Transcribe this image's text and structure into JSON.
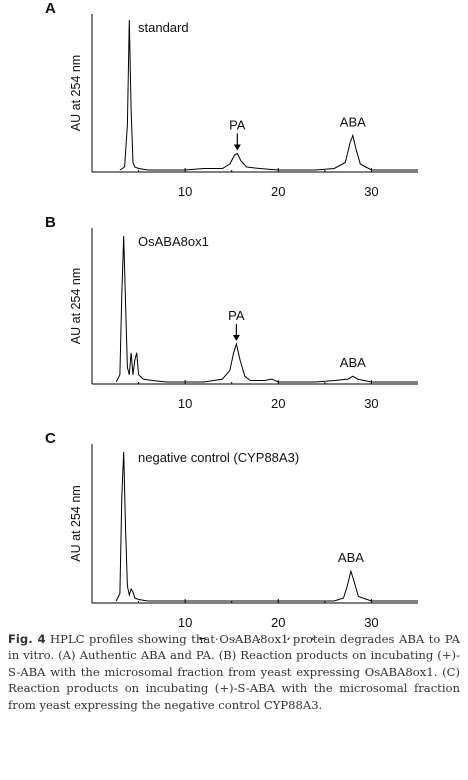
{
  "chart_data": [
    {
      "type": "line",
      "panel_label": "A",
      "annotation": "standard",
      "ylabel": "AU at 254 nm",
      "xlabel": "",
      "xlim": [
        0,
        35
      ],
      "xticks": [
        10,
        20,
        30
      ],
      "grid": false,
      "series": [
        {
          "x": [
            3.0,
            3.5,
            3.8,
            4.0,
            4.2,
            4.4,
            4.6,
            5.0,
            6.0,
            8.0,
            10.0,
            12.0,
            14.0,
            14.8,
            15.3,
            15.6,
            16.0,
            16.6,
            18.0,
            20.0,
            22.0,
            24.0,
            26.0,
            27.2,
            27.7,
            28.0,
            28.3,
            28.8,
            30.0,
            32.0,
            34.0,
            35.0
          ],
          "y": [
            0.0,
            0.02,
            0.3,
            1.0,
            0.4,
            0.05,
            0.02,
            0.01,
            0.0,
            0.0,
            0.0,
            0.01,
            0.01,
            0.04,
            0.1,
            0.11,
            0.06,
            0.02,
            0.01,
            0.0,
            0.0,
            0.0,
            0.01,
            0.05,
            0.18,
            0.23,
            0.15,
            0.04,
            0.0,
            0.0,
            0.0,
            0.0
          ]
        }
      ],
      "peak_labels": [
        {
          "text": "PA",
          "x": 15.6,
          "arrow": true
        },
        {
          "text": "ABA",
          "x": 28.0,
          "arrow": false
        }
      ]
    },
    {
      "type": "line",
      "panel_label": "B",
      "annotation": "OsABA8ox1",
      "ylabel": "AU at 254 nm",
      "xlabel": "",
      "xlim": [
        0,
        35
      ],
      "xticks": [
        10,
        20,
        30
      ],
      "grid": false,
      "series": [
        {
          "x": [
            2.6,
            3.0,
            3.2,
            3.4,
            3.6,
            3.8,
            4.0,
            4.2,
            4.4,
            4.6,
            4.8,
            5.0,
            5.5,
            6.5,
            8.0,
            10.0,
            12.0,
            14.0,
            14.8,
            15.2,
            15.5,
            15.9,
            16.4,
            17.0,
            18.5,
            19.3,
            20.0,
            22.0,
            24.0,
            26.0,
            27.5,
            28.0,
            28.5,
            30.0,
            32.0,
            35.0
          ],
          "y": [
            0.0,
            0.05,
            0.6,
            1.0,
            0.55,
            0.1,
            0.05,
            0.2,
            0.05,
            0.15,
            0.2,
            0.05,
            0.02,
            0.01,
            0.0,
            0.0,
            0.0,
            0.02,
            0.08,
            0.2,
            0.26,
            0.15,
            0.04,
            0.01,
            0.01,
            0.02,
            0.0,
            0.0,
            0.0,
            0.01,
            0.02,
            0.04,
            0.02,
            0.0,
            0.0,
            0.0
          ]
        }
      ],
      "peak_labels": [
        {
          "text": "PA",
          "x": 15.5,
          "arrow": true
        },
        {
          "text": "ABA",
          "x": 28.0,
          "arrow": false
        }
      ]
    },
    {
      "type": "line",
      "panel_label": "C",
      "annotation": "negative control (CYP88A3)",
      "ylabel": "AU at 254 nm",
      "xlabel": "Retention time (min)",
      "xlim": [
        0,
        35
      ],
      "xticks": [
        10,
        20,
        30
      ],
      "grid": false,
      "series": [
        {
          "x": [
            2.6,
            3.0,
            3.2,
            3.4,
            3.6,
            3.8,
            4.0,
            4.2,
            4.4,
            4.6,
            5.0,
            6.0,
            8.0,
            10.0,
            14.0,
            18.0,
            22.0,
            26.0,
            27.0,
            27.4,
            27.8,
            28.1,
            28.6,
            30.0,
            32.0,
            35.0
          ],
          "y": [
            0.0,
            0.05,
            0.7,
            1.0,
            0.5,
            0.1,
            0.04,
            0.08,
            0.06,
            0.02,
            0.01,
            0.0,
            0.0,
            0.0,
            0.0,
            0.0,
            0.0,
            0.0,
            0.02,
            0.1,
            0.2,
            0.14,
            0.03,
            0.0,
            0.0,
            0.0
          ]
        }
      ],
      "peak_labels": [
        {
          "text": "ABA",
          "x": 27.8,
          "arrow": false
        }
      ]
    }
  ],
  "caption": {
    "label": "Fig. 4",
    "text": "HPLC profiles showing that OsABA8ox1 protein degrades ABA to PA in vitro. (A) Authentic ABA and PA. (B) Reaction products on incubating (+)-S-ABA with the microsomal fraction from yeast expressing OsABA8ox1. (C) Reaction products on incubating (+)-S-ABA with the microsomal fraction from yeast expressing the negative control CYP88A3."
  }
}
